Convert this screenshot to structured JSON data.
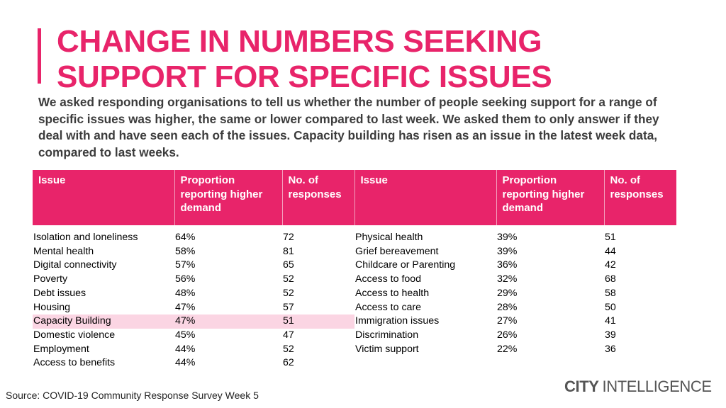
{
  "colors": {
    "accent": "#e8246a",
    "highlight": "#fbd5e3",
    "body_text": "#3c3c3c"
  },
  "title": "CHANGE IN NUMBERS SEEKING\nSUPPORT FOR SPECIFIC ISSUES",
  "intro": "We asked responding organisations to tell us whether the number of people seeking support for a range of specific issues was higher, the same or lower compared to last week. We asked them to only answer if they deal with and have seen each of the issues. Capacity building has risen as an issue in the latest week data, compared to last weeks.",
  "table": {
    "headers": [
      "Issue",
      "Proportion reporting higher demand",
      "No. of responses",
      "Issue",
      "Proportion reporting higher demand",
      "No. of responses"
    ],
    "rows": [
      [
        "Isolation and loneliness",
        "64%",
        "72",
        "Physical health",
        "39%",
        "51"
      ],
      [
        "Mental health",
        "58%",
        "81",
        "Grief bereavement",
        "39%",
        "44"
      ],
      [
        "Digital connectivity",
        "57%",
        "65",
        "Childcare or Parenting",
        "36%",
        "42"
      ],
      [
        "Poverty",
        "56%",
        "52",
        "Access to food",
        "32%",
        "68"
      ],
      [
        "Debt issues",
        "48%",
        "52",
        "Access to health",
        "29%",
        "58"
      ],
      [
        "Housing",
        "47%",
        "57",
        "Access to care",
        "28%",
        "50"
      ],
      [
        "Capacity Building",
        "47%",
        "51",
        "Immigration issues",
        "27%",
        "41"
      ],
      [
        "Domestic violence",
        "45%",
        "47",
        "Discrimination",
        "26%",
        "39"
      ],
      [
        "Employment",
        "44%",
        "52",
        "Victim support",
        "22%",
        "36"
      ],
      [
        "Access to benefits",
        "44%",
        "62",
        "",
        "",
        ""
      ]
    ],
    "highlighted_row": 6
  },
  "source": "Source: COVID-19 Community Response Survey Week 5",
  "logo": {
    "bold": "CITY",
    "light": "INTELLIGENCE"
  }
}
